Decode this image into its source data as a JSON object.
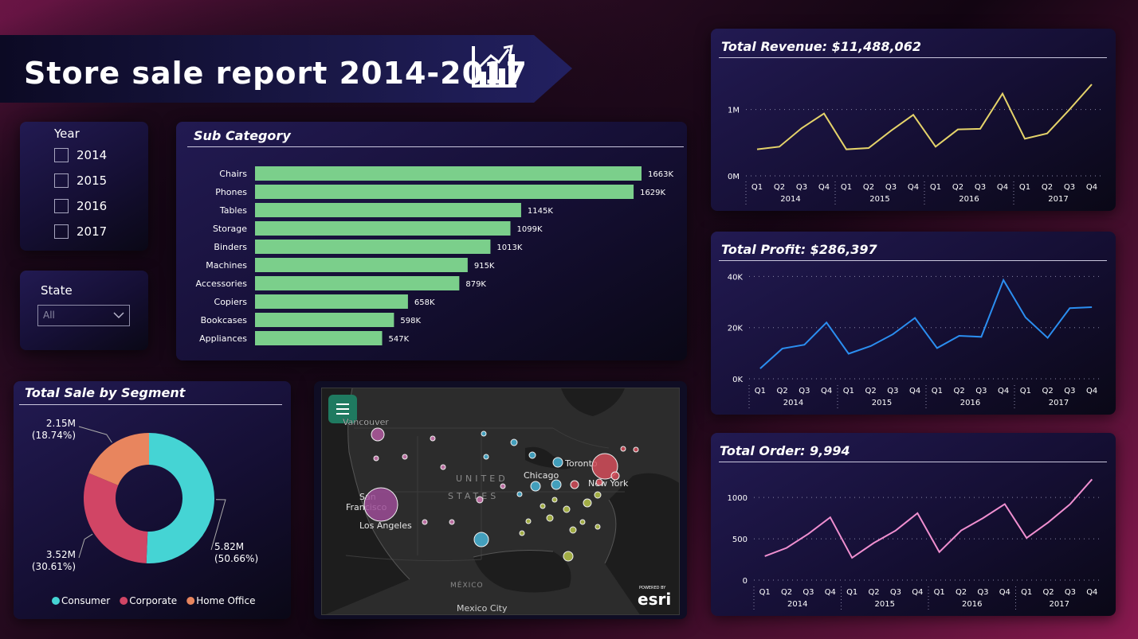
{
  "title": "Store sale report 2014-2017",
  "year_slicer": {
    "label": "Year",
    "options": [
      "2014",
      "2015",
      "2016",
      "2017"
    ]
  },
  "state_slicer": {
    "label": "State",
    "selected": "All"
  },
  "subcategory": {
    "title": "Sub Category",
    "chart_data": {
      "type": "bar",
      "orientation": "horizontal",
      "categories": [
        "Chairs",
        "Phones",
        "Tables",
        "Storage",
        "Binders",
        "Machines",
        "Accessories",
        "Copiers",
        "Bookcases",
        "Appliances"
      ],
      "values": [
        1663,
        1629,
        1145,
        1099,
        1013,
        915,
        879,
        658,
        598,
        547
      ],
      "labels": [
        "1663K",
        "1629K",
        "1145K",
        "1099K",
        "1013K",
        "915K",
        "879K",
        "658K",
        "598K",
        "547K"
      ],
      "color": "#7bcf8b"
    }
  },
  "segment": {
    "title": "Total Sale by Segment",
    "chart_data": {
      "type": "pie",
      "donut": true,
      "categories": [
        "Consumer",
        "Corporate",
        "Home Office"
      ],
      "values": [
        5.82,
        3.52,
        2.15
      ],
      "labels": [
        [
          "5.82M",
          "(50.66%)"
        ],
        [
          "3.52M",
          "(30.61%)"
        ],
        [
          "2.15M",
          "(18.74%)"
        ]
      ],
      "colors": [
        "#45d4d4",
        "#d14565",
        "#e8855e"
      ]
    },
    "legend": [
      "Consumer",
      "Corporate",
      "Home Office"
    ]
  },
  "map": {
    "labels": {
      "vancouver": "Vancouver",
      "san_francisco_1": "San",
      "san_francisco_2": "Francisco",
      "los_angeles": "Los Angeles",
      "chicago": "Chicago",
      "toronto": "Toronto",
      "new_york": "New York",
      "mexico_city": "Mexico City",
      "country_us_1": "UNITED",
      "country_us_2": "STATES",
      "country_mx": "MÉXICO",
      "powered_by": "POWERED BY",
      "esri": "esri"
    }
  },
  "revenue": {
    "title": "Total Revenue: $11,488,062",
    "chart_data": {
      "type": "line",
      "x": [
        "Q1",
        "Q2",
        "Q3",
        "Q4",
        "Q1",
        "Q2",
        "Q3",
        "Q4",
        "Q1",
        "Q2",
        "Q3",
        "Q4",
        "Q1",
        "Q2",
        "Q3",
        "Q4"
      ],
      "years": [
        "2014",
        "2015",
        "2016",
        "2017"
      ],
      "y": [
        0.4,
        0.44,
        0.72,
        0.94,
        0.4,
        0.42,
        0.68,
        0.92,
        0.44,
        0.7,
        0.71,
        1.24,
        0.56,
        0.64,
        1.0,
        1.38
      ],
      "y_unit": "M",
      "yticks": [
        0,
        1
      ],
      "ytick_labels": [
        "0M",
        "1M"
      ],
      "ylim": [
        0,
        1.5
      ],
      "color": "#e5d36a"
    }
  },
  "profit": {
    "title": "Total Profit: $286,397",
    "chart_data": {
      "type": "line",
      "x": [
        "Q1",
        "Q2",
        "Q3",
        "Q4",
        "Q1",
        "Q2",
        "Q3",
        "Q4",
        "Q1",
        "Q2",
        "Q3",
        "Q4",
        "Q1",
        "Q2",
        "Q3",
        "Q4"
      ],
      "years": [
        "2014",
        "2015",
        "2016",
        "2017"
      ],
      "y": [
        4000,
        11800,
        13300,
        22000,
        9800,
        12800,
        17400,
        23800,
        12000,
        16800,
        16400,
        38600,
        24000,
        16000,
        27600,
        28000
      ],
      "yticks": [
        0,
        20000,
        40000
      ],
      "ytick_labels": [
        "0K",
        "20K",
        "40K"
      ],
      "ylim": [
        0,
        42000
      ],
      "color": "#2b8ef0"
    }
  },
  "orders": {
    "title": "Total Order: 9,994",
    "chart_data": {
      "type": "line",
      "x": [
        "Q1",
        "Q2",
        "Q3",
        "Q4",
        "Q1",
        "Q2",
        "Q3",
        "Q4",
        "Q1",
        "Q2",
        "Q3",
        "Q4",
        "Q1",
        "Q2",
        "Q3",
        "Q4"
      ],
      "years": [
        "2014",
        "2015",
        "2016",
        "2017"
      ],
      "y": [
        290,
        390,
        560,
        760,
        270,
        450,
        600,
        810,
        340,
        600,
        750,
        920,
        510,
        700,
        920,
        1220
      ],
      "yticks": [
        0,
        500,
        1000
      ],
      "ytick_labels": [
        "0",
        "500",
        "1000"
      ],
      "ylim": [
        0,
        1300
      ],
      "color": "#f08fd0"
    }
  }
}
